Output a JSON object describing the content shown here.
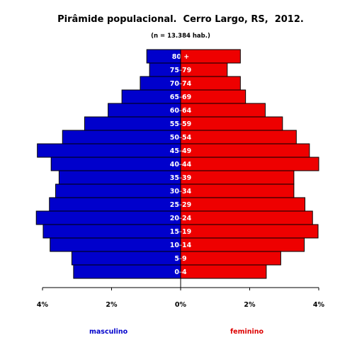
{
  "chart_data": {
    "type": "bar",
    "title": "Pirâmide populacional.  Cerro Largo, RS,  2012.",
    "subtitle": "(n = 13.384 hab.)",
    "categories": [
      "0-4",
      "5-9",
      "10-14",
      "15-19",
      "20-24",
      "25-29",
      "30-34",
      "35-39",
      "40-44",
      "45-49",
      "50-54",
      "55-59",
      "60-64",
      "65-69",
      "70-74",
      "75-79",
      "80 +"
    ],
    "series": [
      {
        "name": "masculino",
        "color": "#0000cc",
        "values": [
          3.1,
          3.15,
          3.78,
          3.98,
          4.18,
          3.8,
          3.62,
          3.52,
          3.75,
          4.15,
          3.42,
          2.78,
          2.1,
          1.7,
          1.17,
          0.9,
          0.98
        ]
      },
      {
        "name": "feminino",
        "color": "#ee0000",
        "values": [
          2.48,
          2.9,
          3.58,
          3.98,
          3.82,
          3.6,
          3.28,
          3.28,
          4.0,
          3.73,
          3.35,
          2.95,
          2.45,
          1.88,
          1.73,
          1.35,
          1.73
        ]
      }
    ],
    "xaxis_ticks": [
      "4%",
      "2%",
      "0%",
      "2%",
      "4%"
    ],
    "xlim": [
      -4,
      4
    ],
    "grid": false
  }
}
